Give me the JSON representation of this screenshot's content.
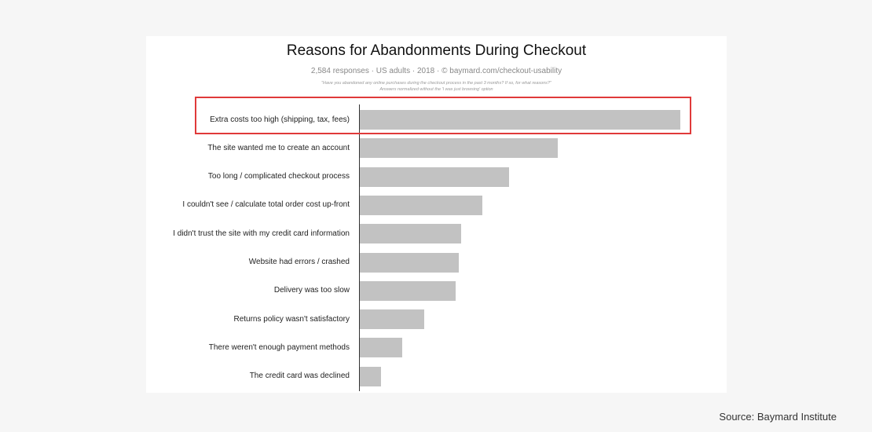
{
  "source": "Source: Baymard Institute",
  "chart_data": {
    "type": "bar",
    "orientation": "horizontal",
    "title": "Reasons for Abandonments During Checkout",
    "subtitle": "2,584 responses · US adults · 2018 · © baymard.com/checkout-usability",
    "note_line1": "\"Have you abandoned any online purchases during the checkout process in the past 3 months? If so, for what reasons?\"",
    "note_line2": "Answers normalized without the 'I was just browsing' option",
    "categories": [
      "Extra costs too high (shipping, tax, fees)",
      "The site wanted me to create an account",
      "Too long / complicated checkout process",
      "I couldn't see / calculate total order cost up-front",
      "I didn't trust the site with my credit card information",
      "Website had errors / crashed",
      "Delivery was too slow",
      "Returns policy wasn't satisfactory",
      "There weren't enough payment methods",
      "The credit card was declined"
    ],
    "values": [
      60,
      37,
      28,
      23,
      19,
      18.5,
      18,
      12,
      8,
      4
    ],
    "xlim": [
      0,
      60
    ],
    "highlighted_index": 0,
    "bar_color": "#c2c2c2",
    "highlight_color": "#e03a3a"
  }
}
